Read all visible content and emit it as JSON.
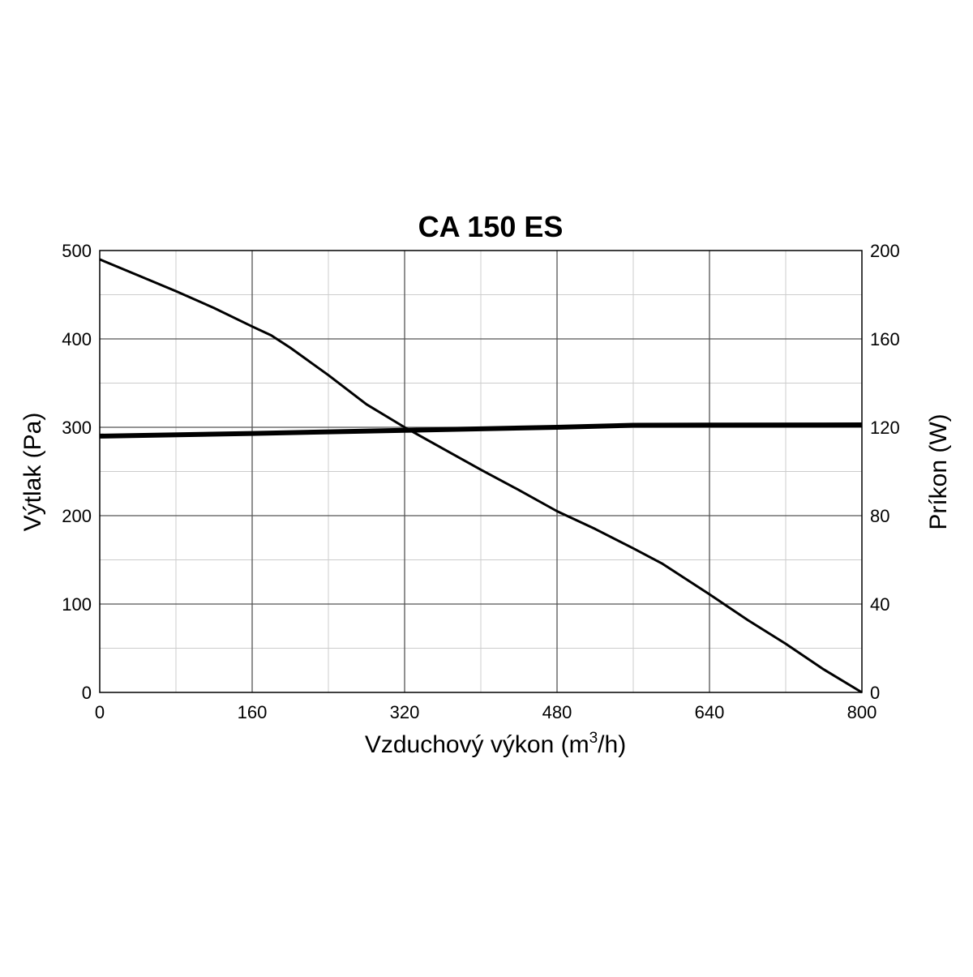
{
  "chart_data": {
    "type": "line",
    "title": "CA 150 ES",
    "xlabel": {
      "prefix": "Vzduchový výkon (m",
      "superscript": "3",
      "suffix": "/h)"
    },
    "ylabel_left": "Výtlak (Pa)",
    "ylabel_right": "Príkon (W)",
    "xlim": [
      0,
      800
    ],
    "ylim_left": [
      0,
      500
    ],
    "ylim_right": [
      0,
      200
    ],
    "x_ticks": [
      "0",
      "160",
      "320",
      "480",
      "640",
      "800"
    ],
    "y_left_ticks": [
      "0",
      "100",
      "200",
      "300",
      "400",
      "500"
    ],
    "y_right_ticks": [
      "0",
      "40",
      "80",
      "120",
      "160",
      "200"
    ],
    "grid": true,
    "legend": "none",
    "colors": {
      "line": "#000000",
      "major_grid": "#555555",
      "minor_grid": "#cccccc",
      "background": "#ffffff"
    },
    "series": [
      {
        "axis": "left",
        "points": [
          [
            0,
            490
          ],
          [
            40,
            472
          ],
          [
            80,
            454
          ],
          [
            120,
            435
          ],
          [
            160,
            414
          ],
          [
            180,
            404
          ],
          [
            200,
            390
          ],
          [
            240,
            359
          ],
          [
            280,
            326
          ],
          [
            320,
            300
          ],
          [
            360,
            276
          ],
          [
            400,
            252
          ],
          [
            440,
            229
          ],
          [
            480,
            205
          ],
          [
            520,
            185
          ],
          [
            560,
            163
          ],
          [
            590,
            146
          ],
          [
            640,
            111
          ],
          [
            680,
            82
          ],
          [
            720,
            55
          ],
          [
            760,
            26
          ],
          [
            800,
            0
          ]
        ]
      },
      {
        "axis": "right",
        "points": [
          [
            0,
            116
          ],
          [
            160,
            117.2
          ],
          [
            320,
            118.6
          ],
          [
            480,
            120.0
          ],
          [
            560,
            120.9
          ],
          [
            640,
            121.0
          ],
          [
            800,
            121.1
          ]
        ]
      }
    ]
  }
}
